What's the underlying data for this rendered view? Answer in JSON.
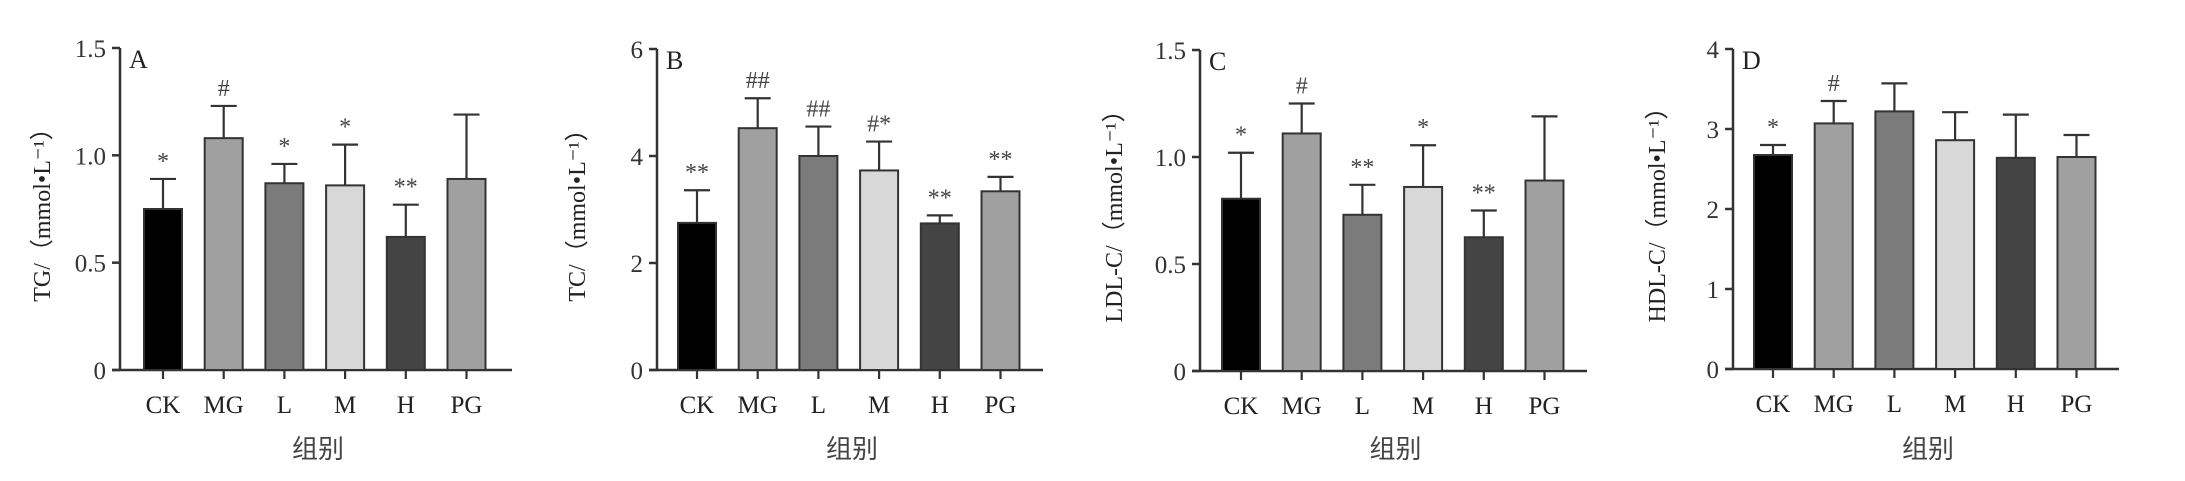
{
  "chart_data": [
    {
      "type": "bar",
      "panel": "A",
      "ylabel": "TG/（mmol•L⁻¹）",
      "xlabel": "组别",
      "ylim": [
        0,
        1.5
      ],
      "yticks": [
        "0",
        "0.5",
        "1.0",
        "1.5"
      ],
      "ytick_values": [
        0,
        0.5,
        1.0,
        1.5
      ],
      "categories": [
        "CK",
        "MG",
        "L",
        "M",
        "H",
        "PG"
      ],
      "values": [
        0.75,
        1.08,
        0.87,
        0.86,
        0.62,
        0.89
      ],
      "error_upper": [
        0.89,
        1.23,
        0.96,
        1.05,
        0.77,
        1.19
      ],
      "annotations": [
        "*",
        "#",
        "*",
        "*",
        "**",
        ""
      ]
    },
    {
      "type": "bar",
      "panel": "B",
      "ylabel": "TC/（mmol•L⁻¹）",
      "xlabel": "组别",
      "ylim": [
        0,
        6
      ],
      "yticks": [
        "0",
        "2",
        "4",
        "6"
      ],
      "ytick_values": [
        0,
        2,
        4,
        6
      ],
      "categories": [
        "CK",
        "MG",
        "L",
        "M",
        "H",
        "PG"
      ],
      "values": [
        2.75,
        4.52,
        4.0,
        3.73,
        2.74,
        3.34
      ],
      "error_upper": [
        3.36,
        5.08,
        4.55,
        4.27,
        2.89,
        3.61
      ],
      "annotations": [
        "**",
        "##",
        "##",
        "#*",
        "**",
        "**"
      ]
    },
    {
      "type": "bar",
      "panel": "C",
      "ylabel": "LDL-C/（mmol•L⁻¹）",
      "xlabel": "组别",
      "ylim": [
        0,
        1.5
      ],
      "yticks": [
        "0",
        "0.5",
        "1.0",
        "1.5"
      ],
      "ytick_values": [
        0,
        0.5,
        1.0,
        1.5
      ],
      "categories": [
        "CK",
        "MG",
        "L",
        "M",
        "H",
        "PG"
      ],
      "values": [
        0.805,
        1.11,
        0.73,
        0.86,
        0.625,
        0.89
      ],
      "error_upper": [
        1.02,
        1.25,
        0.87,
        1.055,
        0.75,
        1.19
      ],
      "annotations": [
        "*",
        "#",
        "**",
        "*",
        "**",
        ""
      ]
    },
    {
      "type": "bar",
      "panel": "D",
      "ylabel": "HDL-C/（mmol•L⁻¹）",
      "xlabel": "组别",
      "ylim": [
        0,
        4
      ],
      "yticks": [
        "0",
        "1",
        "2",
        "3",
        "4"
      ],
      "ytick_values": [
        0,
        1,
        2,
        3,
        4
      ],
      "categories": [
        "CK",
        "MG",
        "L",
        "M",
        "H",
        "PG"
      ],
      "values": [
        2.675,
        3.07,
        3.22,
        2.86,
        2.64,
        2.65
      ],
      "error_upper": [
        2.8,
        3.35,
        3.57,
        3.21,
        3.18,
        2.925
      ],
      "annotations": [
        "*",
        "#",
        "",
        "",
        "",
        ""
      ]
    }
  ],
  "colors": {
    "CK": "#000000",
    "MG": "#a0a0a0",
    "L": "#7b7b7b",
    "M": "#d8d8d8",
    "H": "#444444",
    "PG": "#a0a0a0",
    "axis": "#333333"
  }
}
